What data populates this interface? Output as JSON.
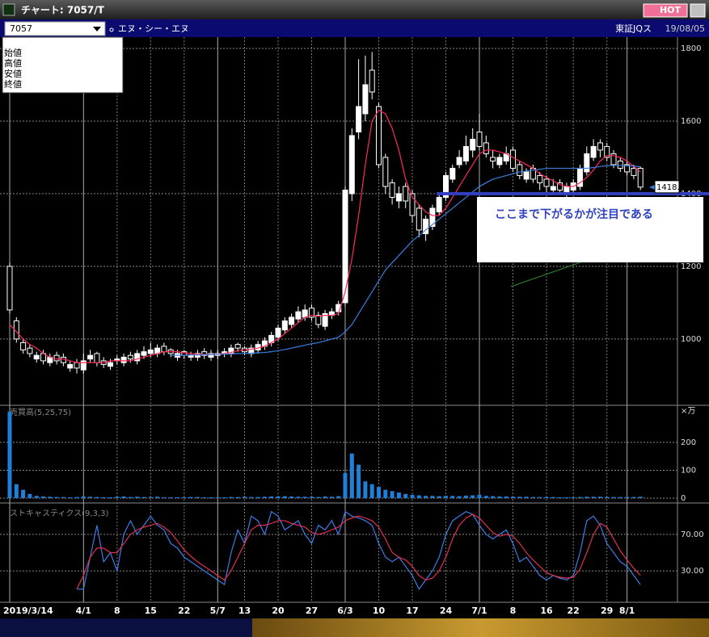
{
  "window": {
    "title": "チャート: 7057/T",
    "hot": "HOT"
  },
  "toolbar": {
    "code": "7057",
    "name": "エヌ・シー・エヌ",
    "market": "東証JQス",
    "date": "19/08/05"
  },
  "legend": [
    "始値",
    "高値",
    "安値",
    "終値"
  ],
  "chart_data": [
    {
      "type": "candlestick",
      "annotation": "ここまで下がるかが注目である",
      "price_tag": "1418.0",
      "support_level": 1400,
      "categories": [
        "2019/3/14",
        null,
        null,
        null,
        null,
        null,
        null,
        null,
        null,
        null,
        null,
        "4/1",
        null,
        null,
        null,
        null,
        "8",
        null,
        null,
        null,
        null,
        "15",
        null,
        null,
        null,
        null,
        "22",
        null,
        null,
        null,
        null,
        "5/7",
        null,
        null,
        null,
        "13",
        null,
        null,
        null,
        null,
        "20",
        null,
        null,
        null,
        null,
        "27",
        null,
        null,
        null,
        null,
        "6/3",
        null,
        null,
        null,
        null,
        "10",
        null,
        null,
        null,
        null,
        "17",
        null,
        null,
        null,
        null,
        "24",
        null,
        null,
        null,
        null,
        "7/1",
        null,
        null,
        null,
        null,
        "8",
        null,
        null,
        null,
        null,
        "16",
        null,
        null,
        null,
        "22",
        null,
        null,
        null,
        null,
        "29",
        null,
        null,
        "8/1",
        null,
        null
      ],
      "open": [
        1200,
        1050,
        990,
        975,
        945,
        960,
        935,
        955,
        950,
        920,
        935,
        915,
        945,
        960,
        940,
        925,
        940,
        935,
        955,
        940,
        955,
        960,
        960,
        980,
        970,
        950,
        965,
        950,
        950,
        965,
        950,
        955,
        960,
        960,
        985,
        975,
        960,
        970,
        980,
        990,
        1005,
        1025,
        1040,
        1055,
        1060,
        1085,
        1065,
        1035,
        1065,
        1075,
        1100,
        1400,
        1570,
        1620,
        1740,
        1640,
        1500,
        1430,
        1380,
        1420,
        1400,
        1360,
        1290,
        1310,
        1350,
        1390,
        1440,
        1480,
        1490,
        1520,
        1570,
        1540,
        1500,
        1480,
        1490,
        1520,
        1480,
        1440,
        1470,
        1450,
        1440,
        1410,
        1430,
        1400,
        1410,
        1420,
        1460,
        1500,
        1540,
        1530,
        1510,
        1490,
        1480,
        1470,
        1470
      ],
      "high": [
        1210,
        1060,
        1000,
        985,
        965,
        970,
        960,
        965,
        960,
        940,
        945,
        960,
        970,
        965,
        950,
        945,
        955,
        960,
        965,
        970,
        980,
        990,
        985,
        990,
        975,
        970,
        970,
        965,
        970,
        975,
        970,
        970,
        975,
        985,
        990,
        980,
        985,
        995,
        1005,
        1020,
        1040,
        1060,
        1070,
        1090,
        1095,
        1095,
        1075,
        1080,
        1085,
        1105,
        1420,
        1580,
        1770,
        1780,
        1790,
        1650,
        1510,
        1440,
        1420,
        1430,
        1410,
        1370,
        1340,
        1370,
        1400,
        1460,
        1480,
        1520,
        1560,
        1580,
        1620,
        1560,
        1520,
        1510,
        1530,
        1530,
        1490,
        1470,
        1480,
        1460,
        1450,
        1440,
        1440,
        1430,
        1440,
        1480,
        1530,
        1550,
        1550,
        1540,
        1520,
        1500,
        1490,
        1480,
        1475
      ],
      "low": [
        1070,
        990,
        960,
        950,
        935,
        930,
        925,
        930,
        925,
        910,
        905,
        905,
        935,
        925,
        920,
        915,
        930,
        925,
        935,
        930,
        945,
        950,
        950,
        955,
        950,
        940,
        945,
        940,
        940,
        945,
        940,
        945,
        950,
        950,
        965,
        955,
        950,
        960,
        970,
        980,
        995,
        1015,
        1030,
        1045,
        1050,
        1050,
        1030,
        1025,
        1055,
        1065,
        1090,
        1380,
        1550,
        1600,
        1660,
        1470,
        1400,
        1370,
        1360,
        1360,
        1320,
        1280,
        1270,
        1300,
        1340,
        1380,
        1430,
        1470,
        1480,
        1500,
        1520,
        1500,
        1470,
        1470,
        1480,
        1460,
        1440,
        1430,
        1430,
        1410,
        1400,
        1400,
        1400,
        1390,
        1400,
        1410,
        1450,
        1490,
        1500,
        1490,
        1470,
        1460,
        1450,
        1440,
        1410
      ],
      "close": [
        1080,
        1000,
        970,
        960,
        955,
        940,
        950,
        940,
        935,
        930,
        920,
        940,
        955,
        935,
        930,
        935,
        945,
        950,
        945,
        960,
        965,
        970,
        975,
        965,
        960,
        960,
        955,
        955,
        960,
        955,
        960,
        960,
        965,
        975,
        975,
        965,
        975,
        985,
        995,
        1010,
        1030,
        1050,
        1060,
        1075,
        1080,
        1060,
        1040,
        1070,
        1075,
        1095,
        1410,
        1560,
        1640,
        1700,
        1680,
        1480,
        1420,
        1390,
        1400,
        1380,
        1340,
        1300,
        1330,
        1360,
        1390,
        1450,
        1470,
        1500,
        1530,
        1550,
        1530,
        1510,
        1490,
        1500,
        1510,
        1470,
        1450,
        1460,
        1440,
        1430,
        1420,
        1420,
        1410,
        1420,
        1430,
        1470,
        1510,
        1530,
        1520,
        1500,
        1480,
        1470,
        1460,
        1450,
        1418
      ],
      "series": [
        {
          "color": "#ff2a55",
          "values": [
            1040,
            1020,
            1000,
            985,
            975,
            960,
            950,
            945,
            945,
            940,
            935,
            935,
            935,
            935,
            935,
            940,
            940,
            940,
            940,
            945,
            950,
            955,
            960,
            965,
            965,
            965,
            962,
            960,
            958,
            958,
            958,
            958,
            960,
            963,
            968,
            970,
            972,
            975,
            980,
            990,
            1000,
            1015,
            1030,
            1045,
            1060,
            1065,
            1063,
            1065,
            1065,
            1070,
            1130,
            1220,
            1340,
            1480,
            1600,
            1630,
            1620,
            1580,
            1520,
            1440,
            1390,
            1370,
            1350,
            1340,
            1340,
            1360,
            1390,
            1420,
            1450,
            1480,
            1510,
            1520,
            1520,
            1515,
            1510,
            1500,
            1490,
            1480,
            1470,
            1455,
            1445,
            1435,
            1425,
            1420,
            1420,
            1430,
            1445,
            1465,
            1490,
            1505,
            1505,
            1500,
            1490,
            1475,
            1460
          ]
        },
        {
          "color": "#3a7ee0",
          "values": [
            null,
            null,
            null,
            null,
            null,
            null,
            null,
            null,
            null,
            null,
            null,
            null,
            null,
            null,
            null,
            null,
            null,
            null,
            null,
            null,
            null,
            null,
            null,
            null,
            955,
            955,
            955,
            956,
            956,
            957,
            957,
            958,
            958,
            959,
            960,
            960,
            961,
            962,
            963,
            965,
            968,
            971,
            975,
            979,
            983,
            987,
            990,
            995,
            1000,
            1005,
            1020,
            1040,
            1070,
            1100,
            1130,
            1160,
            1190,
            1210,
            1230,
            1250,
            1270,
            1285,
            1300,
            1315,
            1330,
            1345,
            1360,
            1375,
            1390,
            1405,
            1420,
            1430,
            1440,
            1445,
            1450,
            1455,
            1460,
            1462,
            1465,
            1467,
            1470,
            1470,
            1470,
            1470,
            1470,
            1470,
            1470,
            1472,
            1475,
            1477,
            1478,
            1478,
            1477,
            1476,
            1474
          ]
        }
      ],
      "ylim": [
        822,
        1831
      ],
      "yticks": [
        1000,
        1200,
        1400,
        1600,
        1800
      ],
      "grid": true
    },
    {
      "type": "bar",
      "title": "売買高(5,25,75)",
      "unit": "×万",
      "color": "#1e80d8",
      "values": [
        310,
        50,
        30,
        15,
        8,
        6,
        5,
        4,
        4,
        3,
        4,
        6,
        5,
        4,
        3,
        3,
        5,
        6,
        4,
        5,
        4,
        4,
        5,
        3,
        3,
        3,
        3,
        4,
        4,
        3,
        3,
        3,
        3,
        4,
        4,
        5,
        4,
        4,
        5,
        6,
        6,
        7,
        6,
        5,
        5,
        5,
        4,
        6,
        5,
        7,
        90,
        160,
        120,
        60,
        50,
        40,
        30,
        25,
        20,
        15,
        12,
        10,
        8,
        8,
        7,
        8,
        8,
        7,
        9,
        10,
        12,
        8,
        7,
        6,
        6,
        5,
        5,
        5,
        4,
        4,
        4,
        4,
        3,
        3,
        3,
        4,
        5,
        5,
        5,
        4,
        4,
        4,
        4,
        4,
        5
      ],
      "ylim": [
        0,
        330
      ],
      "yticks": [
        0,
        100,
        200
      ],
      "grid": true
    },
    {
      "type": "line",
      "title": "ストキャスティクス(9,3,3)",
      "series": [
        {
          "color": "#3b7de8",
          "values": [
            null,
            null,
            null,
            null,
            null,
            null,
            null,
            null,
            null,
            null,
            10,
            10,
            45,
            80,
            40,
            50,
            30,
            70,
            85,
            70,
            80,
            90,
            80,
            75,
            60,
            55,
            45,
            40,
            35,
            30,
            25,
            20,
            15,
            50,
            75,
            60,
            90,
            85,
            70,
            95,
            90,
            75,
            80,
            85,
            70,
            60,
            80,
            75,
            85,
            70,
            95,
            90,
            88,
            85,
            80,
            60,
            45,
            40,
            45,
            35,
            25,
            10,
            20,
            30,
            45,
            70,
            85,
            90,
            95,
            92,
            80,
            70,
            65,
            70,
            75,
            60,
            40,
            45,
            35,
            25,
            20,
            25,
            22,
            20,
            25,
            50,
            85,
            90,
            80,
            60,
            50,
            40,
            35,
            25,
            15
          ]
        },
        {
          "color": "#e03050",
          "values": [
            null,
            null,
            null,
            null,
            null,
            null,
            null,
            null,
            null,
            null,
            10,
            25,
            45,
            55,
            55,
            50,
            50,
            60,
            70,
            75,
            78,
            80,
            82,
            78,
            72,
            63,
            53,
            46,
            40,
            35,
            30,
            25,
            20,
            30,
            45,
            60,
            75,
            80,
            80,
            82,
            85,
            85,
            82,
            80,
            78,
            72,
            70,
            72,
            75,
            78,
            85,
            88,
            90,
            88,
            85,
            78,
            65,
            50,
            45,
            42,
            35,
            25,
            20,
            22,
            30,
            45,
            65,
            80,
            88,
            92,
            88,
            80,
            72,
            68,
            70,
            68,
            60,
            50,
            42,
            35,
            28,
            25,
            23,
            22,
            23,
            32,
            50,
            70,
            82,
            78,
            65,
            52,
            42,
            33,
            25
          ]
        }
      ],
      "ylim": [
        0,
        100
      ],
      "yticks": [
        {
          "value": 30,
          "label": "30.00"
        },
        {
          "value": 70,
          "label": "70.00"
        }
      ],
      "grid": true
    }
  ]
}
